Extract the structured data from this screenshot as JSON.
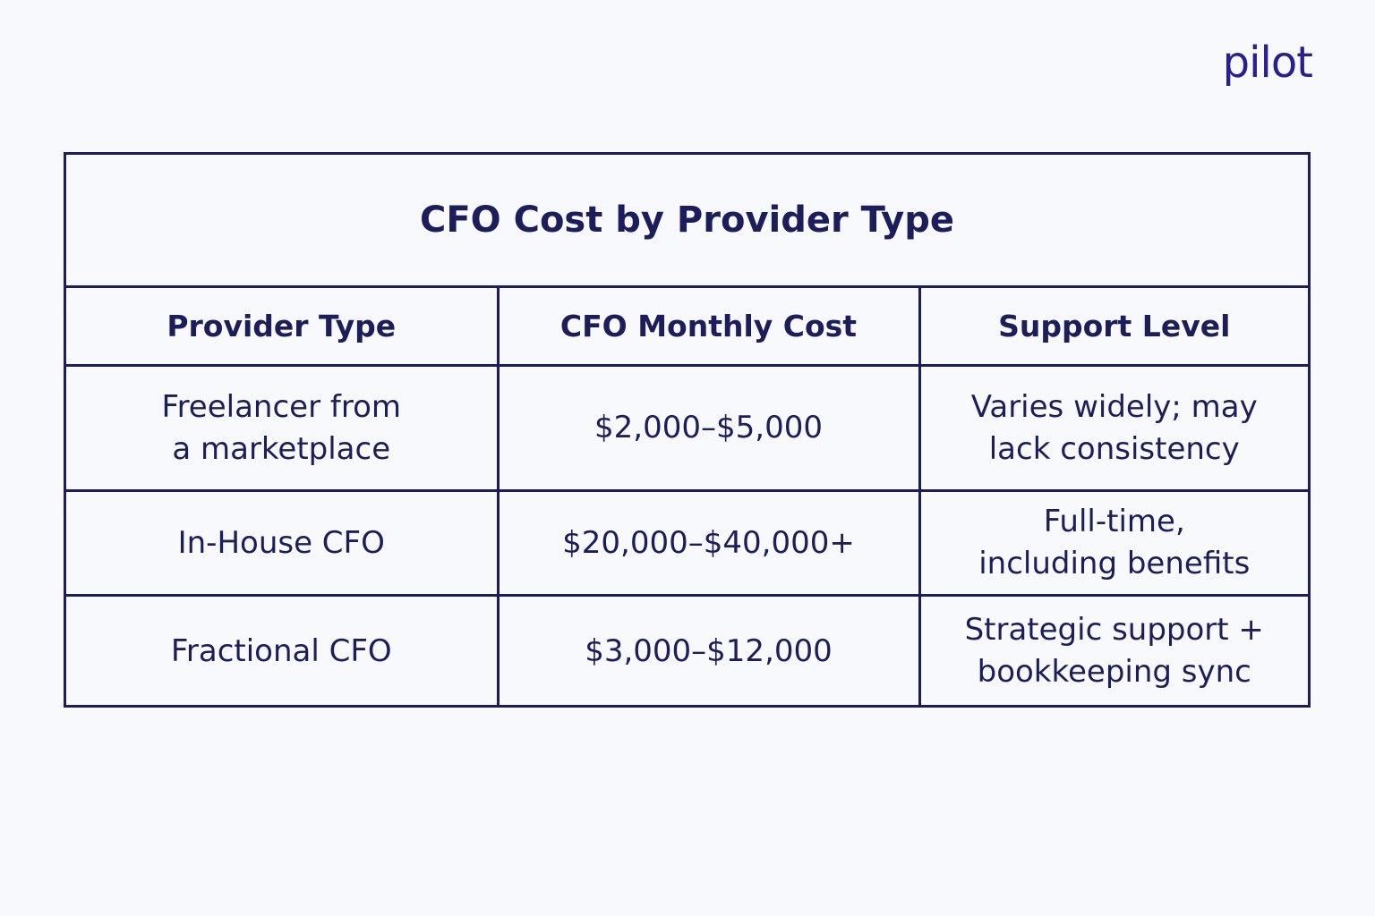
{
  "brand": {
    "logo_text": "pilot",
    "color": "#2a1f8f"
  },
  "table": {
    "title": "CFO Cost by Provider Type",
    "headers": [
      "Provider Type",
      "CFO Monthly Cost",
      "Support Level"
    ],
    "rows": [
      {
        "provider": "Freelancer from\na marketplace",
        "cost": "$2,000–$5,000",
        "support": "Varies widely; may\nlack consistency"
      },
      {
        "provider": "In-House CFO",
        "cost": "$20,000–$40,000+",
        "support": "Full-time,\nincluding benefits"
      },
      {
        "provider": "Fractional CFO",
        "cost": "$3,000–$12,000",
        "support": "Strategic support +\nbookkeeping sync"
      }
    ]
  },
  "colors": {
    "background": "#f8f9fc",
    "ink": "#1e1d5c"
  }
}
